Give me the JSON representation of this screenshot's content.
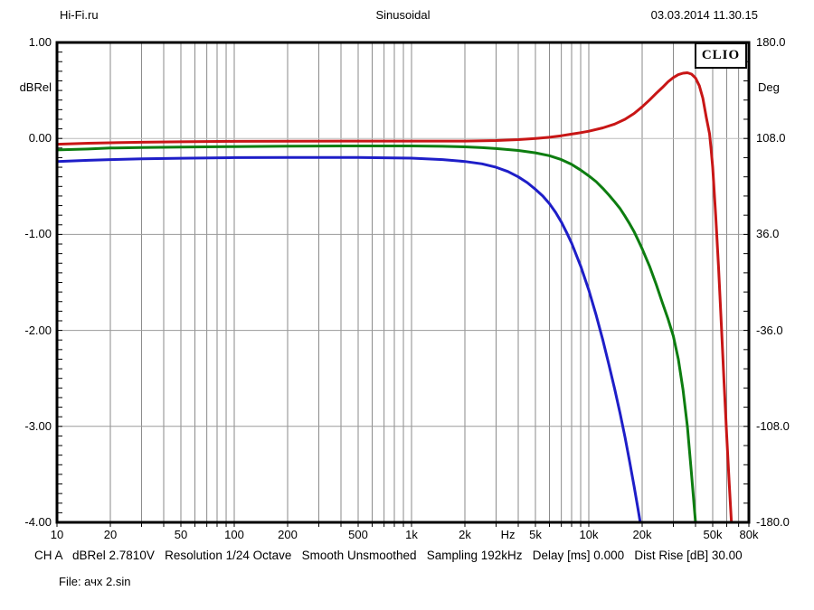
{
  "header": {
    "left": "Hi-Fi.ru",
    "center": "Sinusoidal",
    "right": "03.03.2014 11.30.15"
  },
  "badge": "CLIO",
  "status_line": "CH A   dBRel 2.7810V   Resolution 1/24 Octave   Smooth Unsmoothed   Sampling 192kHz   Delay [ms] 0.000   Dist Rise [dB] 30.00",
  "file_line": "File: ачх 2.sin",
  "chart_data": {
    "type": "line",
    "title": "Sinusoidal",
    "x_axis": {
      "scale": "log",
      "min_hz": 10,
      "max_hz": 80000,
      "unit": "Hz",
      "tick_labels": [
        {
          "f": 10,
          "label": "10"
        },
        {
          "f": 20,
          "label": "20"
        },
        {
          "f": 50,
          "label": "50"
        },
        {
          "f": 100,
          "label": "100"
        },
        {
          "f": 200,
          "label": "200"
        },
        {
          "f": 500,
          "label": "500"
        },
        {
          "f": 1000,
          "label": "1k"
        },
        {
          "f": 2000,
          "label": "2k"
        },
        {
          "f": 3500,
          "label": "Hz"
        },
        {
          "f": 5000,
          "label": "5k"
        },
        {
          "f": 10000,
          "label": "10k"
        },
        {
          "f": 20000,
          "label": "20k"
        },
        {
          "f": 50000,
          "label": "50k"
        },
        {
          "f": 80000,
          "label": "80k"
        }
      ],
      "gridline_frequencies": [
        20,
        30,
        40,
        50,
        60,
        70,
        80,
        90,
        100,
        200,
        300,
        400,
        500,
        600,
        700,
        800,
        900,
        1000,
        2000,
        3000,
        4000,
        5000,
        6000,
        7000,
        8000,
        9000,
        10000,
        20000,
        30000,
        40000,
        50000,
        60000,
        70000
      ]
    },
    "left_axis": {
      "label": "dBRel",
      "min": -4.0,
      "max": 1.0,
      "minor_tick_step": 0.1,
      "ticks": [
        {
          "v": 1,
          "label": "1.00"
        },
        {
          "v": 0,
          "label": "0.00"
        },
        {
          "v": -1,
          "label": "-1.00"
        },
        {
          "v": -2,
          "label": "-2.00"
        },
        {
          "v": -3,
          "label": "-3.00"
        },
        {
          "v": -4,
          "label": "-4.00"
        }
      ],
      "gridlines_db": [
        0,
        -1,
        -2,
        -3
      ]
    },
    "right_axis": {
      "label": "Deg",
      "min": -180.0,
      "max": 180.0,
      "minor_tick_step": 14.4,
      "ticks": [
        {
          "v": 180,
          "label": "180.0"
        },
        {
          "v": 108,
          "label": "108.0"
        },
        {
          "v": 36,
          "label": "36.0"
        },
        {
          "v": -36,
          "label": "-36.0"
        },
        {
          "v": -108,
          "label": "-108.0"
        },
        {
          "v": -180,
          "label": "-180.0"
        }
      ]
    },
    "colors": {
      "red": "#c81616",
      "green": "#0d7d10",
      "blue": "#1e1ec8",
      "grid_vertical": "#8a8a8a",
      "grid_horizontal": "#9a9a9a",
      "zero_line": "#bcbcbc",
      "frame": "#000000"
    },
    "series": [
      {
        "name": "red-curve",
        "color_key": "red",
        "points": [
          [
            10,
            -0.06
          ],
          [
            15,
            -0.05
          ],
          [
            20,
            -0.045
          ],
          [
            30,
            -0.04
          ],
          [
            50,
            -0.035
          ],
          [
            100,
            -0.03
          ],
          [
            200,
            -0.028
          ],
          [
            500,
            -0.027
          ],
          [
            1000,
            -0.027
          ],
          [
            2000,
            -0.027
          ],
          [
            3000,
            -0.022
          ],
          [
            4000,
            -0.012
          ],
          [
            5000,
            0.0
          ],
          [
            6000,
            0.012
          ],
          [
            7000,
            0.028
          ],
          [
            8000,
            0.045
          ],
          [
            9000,
            0.06
          ],
          [
            10000,
            0.075
          ],
          [
            12000,
            0.11
          ],
          [
            14000,
            0.15
          ],
          [
            16000,
            0.2
          ],
          [
            18000,
            0.26
          ],
          [
            20000,
            0.33
          ],
          [
            22000,
            0.4
          ],
          [
            24000,
            0.47
          ],
          [
            26000,
            0.53
          ],
          [
            28000,
            0.59
          ],
          [
            30000,
            0.635
          ],
          [
            32000,
            0.665
          ],
          [
            34000,
            0.68
          ],
          [
            36000,
            0.685
          ],
          [
            38000,
            0.67
          ],
          [
            40000,
            0.63
          ],
          [
            42000,
            0.55
          ],
          [
            44000,
            0.42
          ],
          [
            46000,
            0.22
          ],
          [
            48000,
            0.05
          ],
          [
            49000,
            -0.12
          ],
          [
            50000,
            -0.3
          ],
          [
            52000,
            -0.8
          ],
          [
            54000,
            -1.35
          ],
          [
            56000,
            -1.95
          ],
          [
            58000,
            -2.55
          ],
          [
            60000,
            -3.1
          ],
          [
            62000,
            -3.6
          ],
          [
            64000,
            -4.05
          ],
          [
            64500,
            -4.2
          ]
        ]
      },
      {
        "name": "green-curve",
        "color_key": "green",
        "points": [
          [
            10,
            -0.12
          ],
          [
            15,
            -0.11
          ],
          [
            20,
            -0.1
          ],
          [
            30,
            -0.095
          ],
          [
            50,
            -0.09
          ],
          [
            100,
            -0.085
          ],
          [
            200,
            -0.08
          ],
          [
            500,
            -0.078
          ],
          [
            1000,
            -0.078
          ],
          [
            1500,
            -0.082
          ],
          [
            2000,
            -0.088
          ],
          [
            2500,
            -0.096
          ],
          [
            3000,
            -0.105
          ],
          [
            4000,
            -0.125
          ],
          [
            5000,
            -0.15
          ],
          [
            6000,
            -0.18
          ],
          [
            7000,
            -0.22
          ],
          [
            8000,
            -0.27
          ],
          [
            9000,
            -0.33
          ],
          [
            10000,
            -0.39
          ],
          [
            11000,
            -0.45
          ],
          [
            12000,
            -0.52
          ],
          [
            13000,
            -0.59
          ],
          [
            14000,
            -0.66
          ],
          [
            15000,
            -0.73
          ],
          [
            16000,
            -0.81
          ],
          [
            17000,
            -0.89
          ],
          [
            18000,
            -0.97
          ],
          [
            19000,
            -1.06
          ],
          [
            20000,
            -1.15
          ],
          [
            22000,
            -1.33
          ],
          [
            24000,
            -1.52
          ],
          [
            26000,
            -1.71
          ],
          [
            28000,
            -1.88
          ],
          [
            30000,
            -2.06
          ],
          [
            32000,
            -2.3
          ],
          [
            34000,
            -2.62
          ],
          [
            36000,
            -3.0
          ],
          [
            38000,
            -3.5
          ],
          [
            40000,
            -4.0
          ],
          [
            40800,
            -4.2
          ]
        ]
      },
      {
        "name": "blue-curve",
        "color_key": "blue",
        "points": [
          [
            10,
            -0.24
          ],
          [
            15,
            -0.228
          ],
          [
            20,
            -0.22
          ],
          [
            30,
            -0.212
          ],
          [
            50,
            -0.206
          ],
          [
            100,
            -0.2
          ],
          [
            200,
            -0.198
          ],
          [
            500,
            -0.198
          ],
          [
            1000,
            -0.205
          ],
          [
            1500,
            -0.22
          ],
          [
            2000,
            -0.24
          ],
          [
            2500,
            -0.265
          ],
          [
            3000,
            -0.3
          ],
          [
            3500,
            -0.345
          ],
          [
            4000,
            -0.4
          ],
          [
            4500,
            -0.46
          ],
          [
            5000,
            -0.53
          ],
          [
            5500,
            -0.6
          ],
          [
            6000,
            -0.68
          ],
          [
            6500,
            -0.77
          ],
          [
            7000,
            -0.87
          ],
          [
            7500,
            -0.98
          ],
          [
            8000,
            -1.09
          ],
          [
            9000,
            -1.33
          ],
          [
            10000,
            -1.58
          ],
          [
            11000,
            -1.84
          ],
          [
            12000,
            -2.1
          ],
          [
            13000,
            -2.36
          ],
          [
            14000,
            -2.61
          ],
          [
            15000,
            -2.86
          ],
          [
            16000,
            -3.11
          ],
          [
            17000,
            -3.37
          ],
          [
            18000,
            -3.62
          ],
          [
            19000,
            -3.87
          ],
          [
            20000,
            -4.12
          ]
        ]
      }
    ]
  }
}
